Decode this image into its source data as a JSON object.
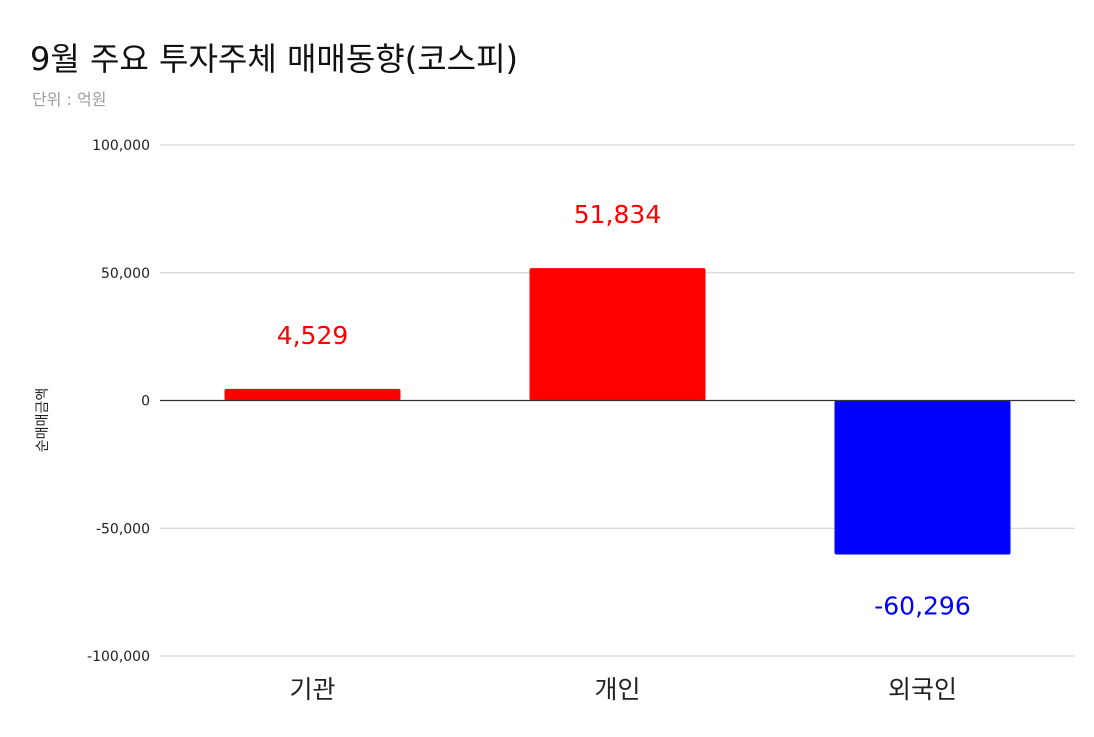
{
  "chart_data": {
    "type": "bar",
    "title": "9월 주요 투자주체 매매동향(코스피)",
    "subtitle": "단위 : 억원",
    "xlabel": "",
    "ylabel": "순매매금액",
    "categories": [
      "기관",
      "개인",
      "외국인"
    ],
    "values": [
      4529,
      51834,
      -60296
    ],
    "value_labels": [
      "4,529",
      "51,834",
      "-60,296"
    ],
    "ylim": [
      -100000,
      100000
    ],
    "yticks": [
      100000,
      50000,
      0,
      -50000,
      -100000
    ],
    "ytick_labels": [
      "100,000",
      "50,000",
      "0",
      "-50,000",
      "-100,000"
    ],
    "grid": true,
    "legend": "none",
    "colors": {
      "positive": "#ff0000",
      "negative": "#0000ff",
      "grid": "#cccccc",
      "zero_line": "#333333"
    }
  }
}
